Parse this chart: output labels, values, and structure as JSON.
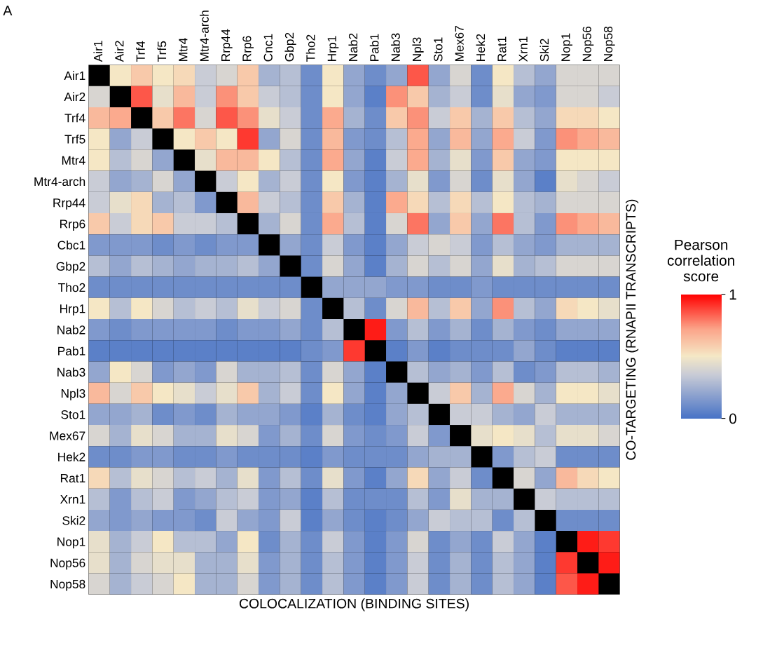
{
  "chart_data": {
    "type": "heatmap",
    "title": "A",
    "xlabel": "COLOCALIZATION (BINDING SITES)",
    "ylabel": "CO-TARGETING (RNAPII TRANSCRIPTS)",
    "clabel": "Pearson\ncorrelation\nscore",
    "categories": [
      "Air1",
      "Air2",
      "Trf4",
      "Trf5",
      "Mtr4",
      "Mtr4-arch",
      "Rrp44",
      "Rrp6",
      "Cnc1",
      "Gbp2",
      "Tho2",
      "Hrp1",
      "Nab2",
      "Pab1",
      "Nab3",
      "Npl3",
      "Sto1",
      "Mex67",
      "Hek2",
      "Rat1",
      "Xrn1",
      "Ski2",
      "Nop1",
      "Nop56",
      "Nop58"
    ],
    "y_categories": [
      "Air1",
      "Air2",
      "Trf4",
      "Trf5",
      "Mtr4",
      "Mtr4-arch",
      "Rrp44",
      "Rrp6",
      "Cbc1",
      "Gbp2",
      "Tho2",
      "Hrp1",
      "Nab2",
      "Pab1",
      "Nab3",
      "Npl3",
      "Sto1",
      "Mex67",
      "Hek2",
      "Rat1",
      "Xrn1",
      "Ski2",
      "Nop1",
      "Nop56",
      "Nop58"
    ],
    "clim": [
      0,
      1
    ],
    "cticks": [
      0,
      1
    ],
    "cells": [
      [
        null,
        0.5,
        0.6,
        0.5,
        0.55,
        0.35,
        0.4,
        0.6,
        0.25,
        0.3,
        0.1,
        0.5,
        0.2,
        0.1,
        0.2,
        0.85,
        0.2,
        0.4,
        0.1,
        0.5,
        0.3,
        0.2,
        0.4,
        0.4,
        0.4
      ],
      [
        0.4,
        null,
        0.85,
        0.45,
        0.65,
        0.35,
        0.75,
        0.6,
        0.35,
        0.3,
        0.1,
        0.5,
        0.2,
        0.05,
        0.75,
        0.6,
        0.25,
        0.35,
        0.1,
        0.45,
        0.2,
        0.15,
        0.4,
        0.4,
        0.35
      ],
      [
        0.65,
        0.7,
        null,
        0.6,
        0.8,
        0.4,
        0.85,
        0.75,
        0.45,
        0.35,
        0.1,
        0.7,
        0.25,
        0.1,
        0.6,
        0.75,
        0.35,
        0.6,
        0.25,
        0.6,
        0.3,
        0.2,
        0.55,
        0.55,
        0.5
      ],
      [
        0.5,
        0.2,
        0.35,
        null,
        0.5,
        0.6,
        0.5,
        0.9,
        0.2,
        0.4,
        0.1,
        0.65,
        0.15,
        0.1,
        0.3,
        0.7,
        0.2,
        0.65,
        0.2,
        0.7,
        0.35,
        0.15,
        0.75,
        0.7,
        0.65
      ],
      [
        0.5,
        0.3,
        0.4,
        0.2,
        null,
        0.45,
        0.65,
        0.65,
        0.5,
        0.3,
        0.1,
        0.7,
        0.2,
        0.05,
        0.35,
        0.7,
        0.25,
        0.45,
        0.15,
        0.6,
        0.2,
        0.15,
        0.5,
        0.5,
        0.5
      ],
      [
        0.35,
        0.2,
        0.25,
        0.4,
        0.2,
        null,
        0.35,
        0.5,
        0.25,
        0.35,
        0.1,
        0.5,
        0.15,
        0.05,
        0.25,
        0.45,
        0.15,
        0.4,
        0.1,
        0.45,
        0.2,
        0.05,
        0.45,
        0.4,
        0.35
      ],
      [
        0.35,
        0.45,
        0.55,
        0.25,
        0.3,
        0.15,
        null,
        0.65,
        0.35,
        0.3,
        0.1,
        0.6,
        0.25,
        0.05,
        0.7,
        0.55,
        0.3,
        0.55,
        0.3,
        0.5,
        0.3,
        0.25,
        0.4,
        0.4,
        0.4
      ],
      [
        0.6,
        0.35,
        0.55,
        0.6,
        0.35,
        0.35,
        0.3,
        null,
        0.25,
        0.4,
        0.1,
        0.7,
        0.3,
        0.05,
        0.4,
        0.8,
        0.2,
        0.6,
        0.2,
        0.8,
        0.3,
        0.15,
        0.75,
        0.7,
        0.65
      ],
      [
        0.15,
        0.15,
        0.15,
        0.1,
        0.15,
        0.1,
        0.15,
        0.15,
        null,
        0.2,
        0.1,
        0.35,
        0.15,
        0.05,
        0.2,
        0.35,
        0.4,
        0.35,
        0.15,
        0.3,
        0.2,
        0.15,
        0.25,
        0.25,
        0.25
      ],
      [
        0.3,
        0.2,
        0.3,
        0.25,
        0.2,
        0.25,
        0.25,
        0.3,
        0.2,
        null,
        0.1,
        0.4,
        0.2,
        0.05,
        0.25,
        0.4,
        0.3,
        0.4,
        0.2,
        0.45,
        0.25,
        0.3,
        0.4,
        0.4,
        0.4
      ],
      [
        0.1,
        0.1,
        0.1,
        0.1,
        0.1,
        0.1,
        0.1,
        0.1,
        0.1,
        0.1,
        null,
        0.2,
        0.2,
        0.2,
        0.15,
        0.15,
        0.1,
        0.1,
        0.15,
        0.1,
        0.1,
        0.1,
        0.1,
        0.1,
        0.1
      ],
      [
        0.5,
        0.3,
        0.5,
        0.4,
        0.3,
        0.35,
        0.3,
        0.45,
        0.35,
        0.4,
        0.1,
        null,
        0.3,
        0.1,
        0.4,
        0.65,
        0.3,
        0.6,
        0.2,
        0.75,
        0.3,
        0.2,
        0.55,
        0.5,
        0.45
      ],
      [
        0.15,
        0.1,
        0.15,
        0.15,
        0.15,
        0.15,
        0.1,
        0.15,
        0.15,
        0.2,
        0.1,
        0.3,
        null,
        0.95,
        0.15,
        0.3,
        0.15,
        0.25,
        0.1,
        0.25,
        0.15,
        0.1,
        0.2,
        0.2,
        0.2
      ],
      [
        0.05,
        0.05,
        0.05,
        0.05,
        0.05,
        0.05,
        0.05,
        0.05,
        0.05,
        0.05,
        0.1,
        0.15,
        0.9,
        null,
        0.05,
        0.15,
        0.05,
        0.1,
        0.1,
        0.1,
        0.2,
        0.1,
        0.05,
        0.05,
        0.05
      ],
      [
        0.2,
        0.5,
        0.4,
        0.15,
        0.2,
        0.15,
        0.4,
        0.25,
        0.25,
        0.3,
        0.1,
        0.4,
        0.2,
        0.05,
        null,
        0.3,
        0.2,
        0.25,
        0.15,
        0.3,
        0.1,
        0.15,
        0.3,
        0.3,
        0.25
      ],
      [
        0.65,
        0.4,
        0.6,
        0.5,
        0.45,
        0.35,
        0.45,
        0.6,
        0.25,
        0.35,
        0.1,
        0.5,
        0.2,
        0.05,
        0.2,
        null,
        0.35,
        0.6,
        0.25,
        0.7,
        0.4,
        0.25,
        0.5,
        0.5,
        0.45
      ],
      [
        0.2,
        0.2,
        0.25,
        0.1,
        0.15,
        0.1,
        0.25,
        0.2,
        0.2,
        0.15,
        0.05,
        0.25,
        0.1,
        0.05,
        0.2,
        0.3,
        null,
        0.35,
        0.35,
        0.25,
        0.2,
        0.35,
        0.25,
        0.25,
        0.25
      ],
      [
        0.4,
        0.25,
        0.45,
        0.4,
        0.25,
        0.25,
        0.45,
        0.4,
        0.15,
        0.25,
        0.1,
        0.4,
        0.15,
        0.1,
        0.15,
        0.35,
        0.15,
        null,
        0.45,
        0.5,
        0.45,
        0.3,
        0.45,
        0.45,
        0.4
      ],
      [
        0.1,
        0.1,
        0.15,
        0.15,
        0.1,
        0.1,
        0.15,
        0.1,
        0.1,
        0.1,
        0.05,
        0.15,
        0.1,
        0.1,
        0.1,
        0.2,
        0.25,
        0.25,
        null,
        0.15,
        0.3,
        0.35,
        0.1,
        0.1,
        0.1
      ],
      [
        0.55,
        0.3,
        0.45,
        0.4,
        0.3,
        0.35,
        0.25,
        0.45,
        0.15,
        0.3,
        0.1,
        0.45,
        0.15,
        0.05,
        0.2,
        0.55,
        0.2,
        0.35,
        0.1,
        null,
        0.4,
        0.2,
        0.65,
        0.55,
        0.5
      ],
      [
        0.3,
        0.15,
        0.3,
        0.35,
        0.15,
        0.2,
        0.3,
        0.35,
        0.15,
        0.2,
        0.05,
        0.3,
        0.1,
        0.1,
        0.1,
        0.3,
        0.15,
        0.45,
        0.25,
        0.25,
        null,
        0.35,
        0.3,
        0.3,
        0.3
      ],
      [
        0.2,
        0.15,
        0.2,
        0.15,
        0.15,
        0.1,
        0.35,
        0.2,
        0.15,
        0.35,
        0.05,
        0.2,
        0.1,
        0.05,
        0.1,
        0.2,
        0.35,
        0.3,
        0.3,
        0.1,
        0.3,
        null,
        0.1,
        0.1,
        0.1
      ],
      [
        0.45,
        0.25,
        0.35,
        0.5,
        0.3,
        0.3,
        0.2,
        0.5,
        0.1,
        0.25,
        0.1,
        0.35,
        0.15,
        0.05,
        0.15,
        0.4,
        0.1,
        0.2,
        0.1,
        0.35,
        0.2,
        0.05,
        null,
        0.95,
        0.9
      ],
      [
        0.45,
        0.25,
        0.4,
        0.45,
        0.45,
        0.25,
        0.25,
        0.45,
        0.15,
        0.25,
        0.1,
        0.3,
        0.15,
        0.05,
        0.15,
        0.35,
        0.1,
        0.25,
        0.1,
        0.3,
        0.2,
        0.05,
        0.9,
        null,
        0.95
      ],
      [
        0.4,
        0.25,
        0.35,
        0.4,
        0.5,
        0.25,
        0.25,
        0.4,
        0.15,
        0.25,
        0.1,
        0.3,
        0.15,
        0.05,
        0.15,
        0.35,
        0.1,
        0.25,
        0.1,
        0.3,
        0.2,
        0.05,
        0.85,
        0.95,
        null
      ]
    ]
  }
}
